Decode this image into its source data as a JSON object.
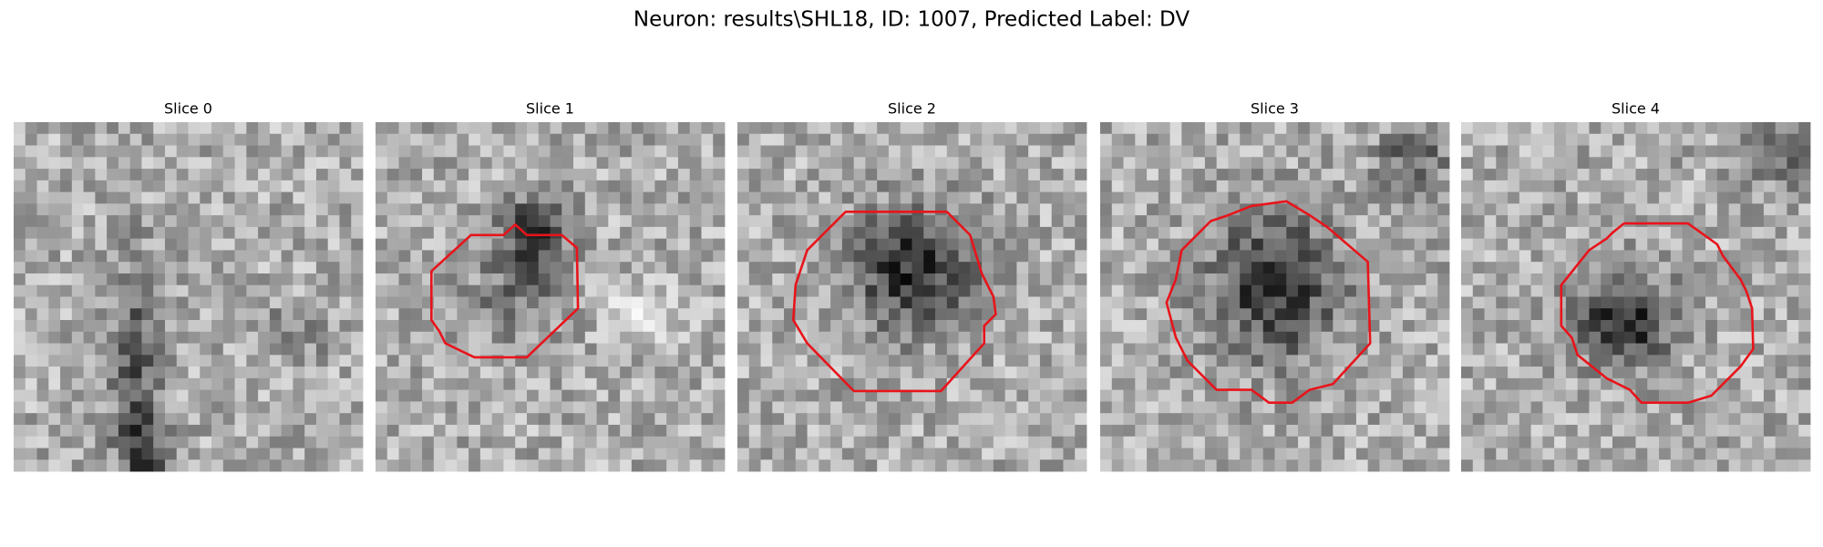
{
  "title": "Neuron: results\\SHL18, ID: 1007, Predicted Label: DV",
  "slices": [
    {
      "label": "Slice 0"
    },
    {
      "label": "Slice 1"
    },
    {
      "label": "Slice 2"
    },
    {
      "label": "Slice 3"
    },
    {
      "label": "Slice 4"
    }
  ]
}
